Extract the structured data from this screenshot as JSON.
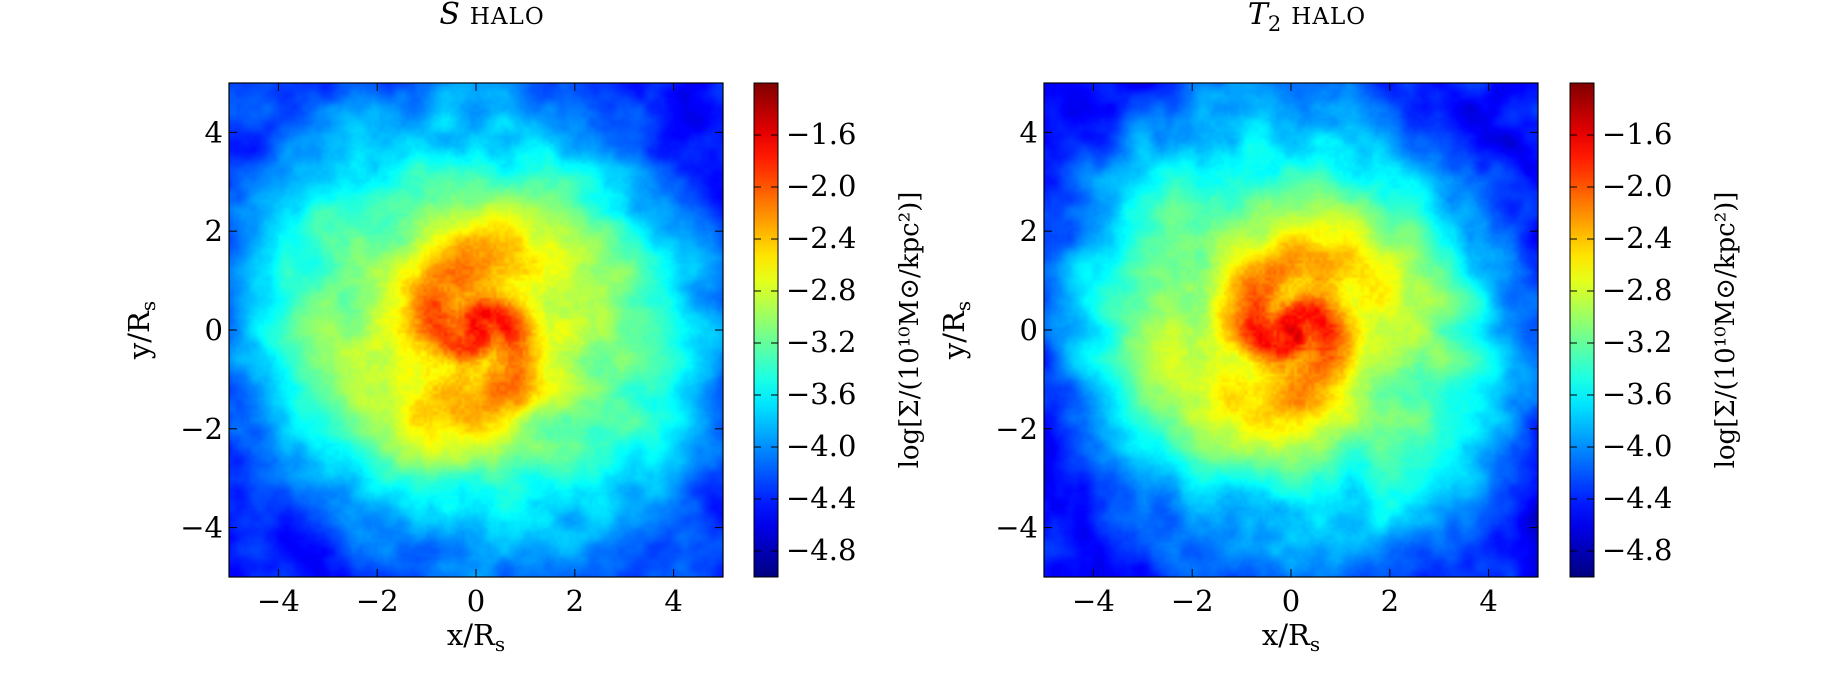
{
  "chart_data": [
    {
      "type": "heatmap",
      "title_symbol": "S",
      "title_sub": "",
      "title_suffix": "HALO",
      "xlabel_main": "x/R",
      "xlabel_sub": "s",
      "ylabel_main": "y/R",
      "ylabel_sub": "s",
      "xlim": [
        -5,
        5
      ],
      "ylim": [
        -5,
        5
      ],
      "xticks": [
        -4,
        -2,
        0,
        2,
        4
      ],
      "yticks": [
        -4,
        -2,
        0,
        2,
        4
      ],
      "xtick_labels": [
        "−4",
        "−2",
        "0",
        "2",
        "4"
      ],
      "ytick_labels": [
        "−4",
        "−2",
        "0",
        "2",
        "4"
      ],
      "colorbar": {
        "label": "log[Σ/(10¹⁰M⊙/kpc²)]",
        "range": [
          -5.0,
          -1.2
        ],
        "ticks": [
          -1.6,
          -2.0,
          -2.4,
          -2.8,
          -3.2,
          -3.6,
          -4.0,
          -4.4,
          -4.8
        ],
        "tick_labels": [
          "−1.6",
          "−2.0",
          "−2.4",
          "−2.8",
          "−3.2",
          "−3.6",
          "−4.0",
          "−4.4",
          "−4.8"
        ],
        "colormap": "jet"
      },
      "center_value": -1.6,
      "edge_value": -4.4,
      "spiral_arms": 2,
      "colormap": "jet"
    },
    {
      "type": "heatmap",
      "title_symbol": "T",
      "title_sub": "2",
      "title_suffix": "HALO",
      "xlabel_main": "x/R",
      "xlabel_sub": "s",
      "ylabel_main": "y/R",
      "ylabel_sub": "s",
      "xlim": [
        -5,
        5
      ],
      "ylim": [
        -5,
        5
      ],
      "xticks": [
        -4,
        -2,
        0,
        2,
        4
      ],
      "yticks": [
        -4,
        -2,
        0,
        2,
        4
      ],
      "xtick_labels": [
        "−4",
        "−2",
        "0",
        "2",
        "4"
      ],
      "ytick_labels": [
        "−4",
        "−2",
        "0",
        "2",
        "4"
      ],
      "colorbar": {
        "label": "log[Σ/(10¹⁰M⊙/kpc²)]",
        "range": [
          -5.0,
          -1.2
        ],
        "ticks": [
          -1.6,
          -2.0,
          -2.4,
          -2.8,
          -3.2,
          -3.6,
          -4.0,
          -4.4,
          -4.8
        ],
        "tick_labels": [
          "−1.6",
          "−2.0",
          "−2.4",
          "−2.8",
          "−3.2",
          "−3.6",
          "−4.0",
          "−4.4",
          "−4.8"
        ],
        "colormap": "jet"
      },
      "center_value": -1.6,
      "edge_value": -4.5,
      "spiral_arms": 2,
      "colormap": "jet"
    }
  ]
}
